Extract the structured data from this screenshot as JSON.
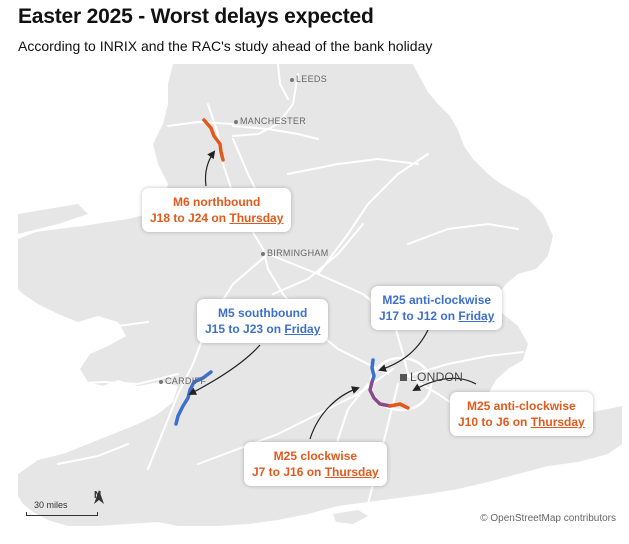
{
  "title": "Easter 2025 - Worst delays expected",
  "subtitle": "According to INRIX and the RAC's study ahead of the bank holiday",
  "cities": {
    "leeds": "LEEDS",
    "manchester": "MANCHESTER",
    "birmingham": "BIRMINGHAM",
    "cardiff": "CARDIFF",
    "london": "LONDON"
  },
  "callouts": {
    "m6": {
      "line1": "M6 northbound",
      "line2_prefix": "J18 to J24 on ",
      "day": "Thursday"
    },
    "m5": {
      "line1": "M5 southbound",
      "line2_prefix": "J15 to J23 on ",
      "day": "Friday"
    },
    "m25_ac_friday": {
      "line1": "M25 anti-clockwise",
      "line2_prefix": "J17 to J12 on ",
      "day": "Friday"
    },
    "m25_ac_thursday": {
      "line1": "M25 anti-clockwise",
      "line2_prefix": "J10 to J6 on ",
      "day": "Thursday"
    },
    "m25_cw": {
      "line1": "M25 clockwise",
      "line2_prefix": "J7 to J16 on ",
      "day": "Thursday"
    }
  },
  "colors": {
    "orange": "#e2591c",
    "blue": "#3d6fcc",
    "land": "#e6e6e6",
    "sea": "#ffffff",
    "roads": "#ffffff"
  },
  "scale_label": "30 miles",
  "north_label": "N",
  "attribution": "© OpenStreetMap contributors"
}
